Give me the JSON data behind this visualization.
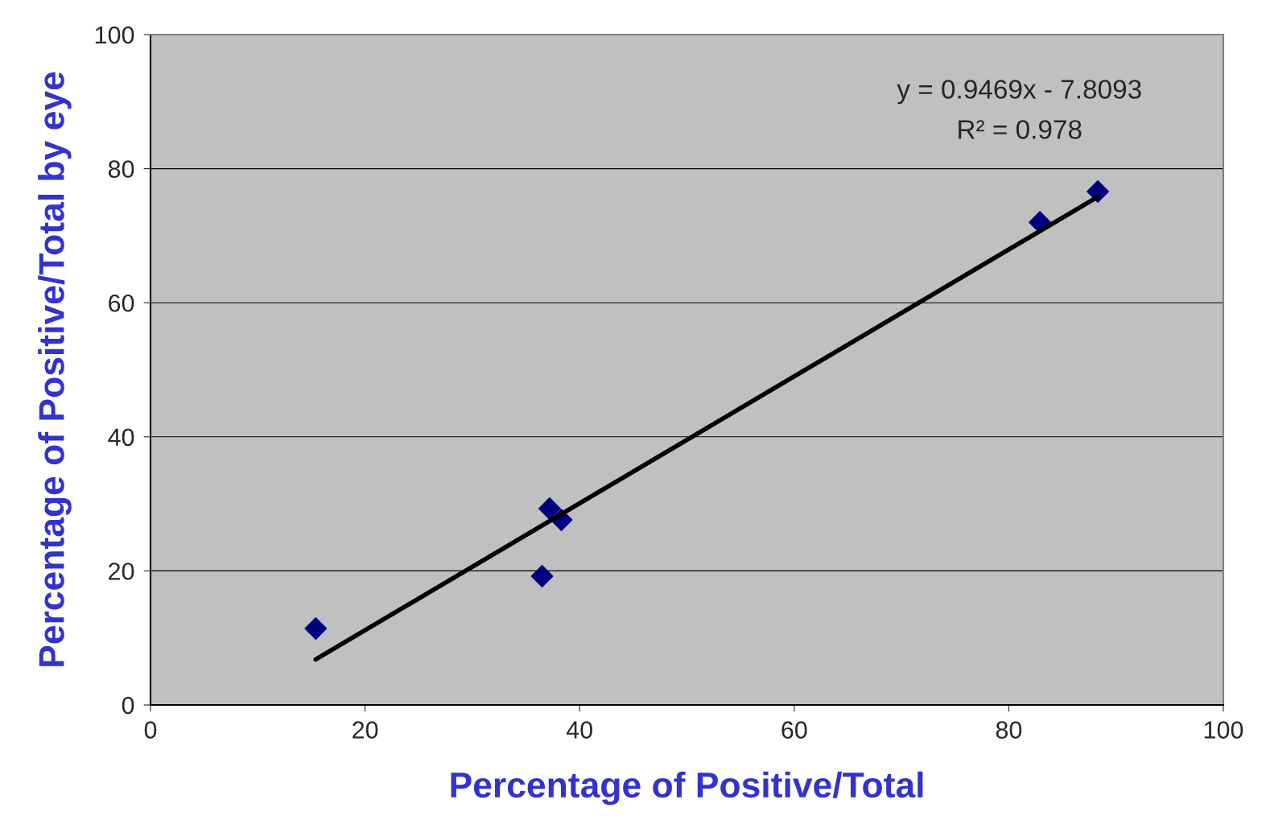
{
  "chart_data": {
    "type": "scatter",
    "xlabel": "Percentage of Positive/Total",
    "ylabel": "Percentage of Positive/Total by eye",
    "series": [
      {
        "color": "#000080",
        "marker": "diamond",
        "x": [
          15.4,
          36.5,
          37.2,
          38.3,
          82.9,
          88.3
        ],
        "values": [
          11.4,
          19.2,
          29.3,
          27.6,
          72.0,
          76.6
        ]
      },
      {
        "type": "line",
        "color": "#000000",
        "marker": "none",
        "line_style": "solid",
        "x": [
          15.4,
          88.3
        ],
        "values": [
          6.8,
          75.8
        ]
      }
    ],
    "annotations": [
      "y = 0.9469x - 7.8093",
      "R² = 0.978"
    ],
    "xlim": [
      0,
      100
    ],
    "ylim": [
      0,
      100
    ],
    "xticks": [
      0,
      20,
      40,
      60,
      80,
      100
    ],
    "yticks": [
      0,
      20,
      40,
      60,
      80,
      100
    ],
    "grid": "y",
    "legend": false
  }
}
